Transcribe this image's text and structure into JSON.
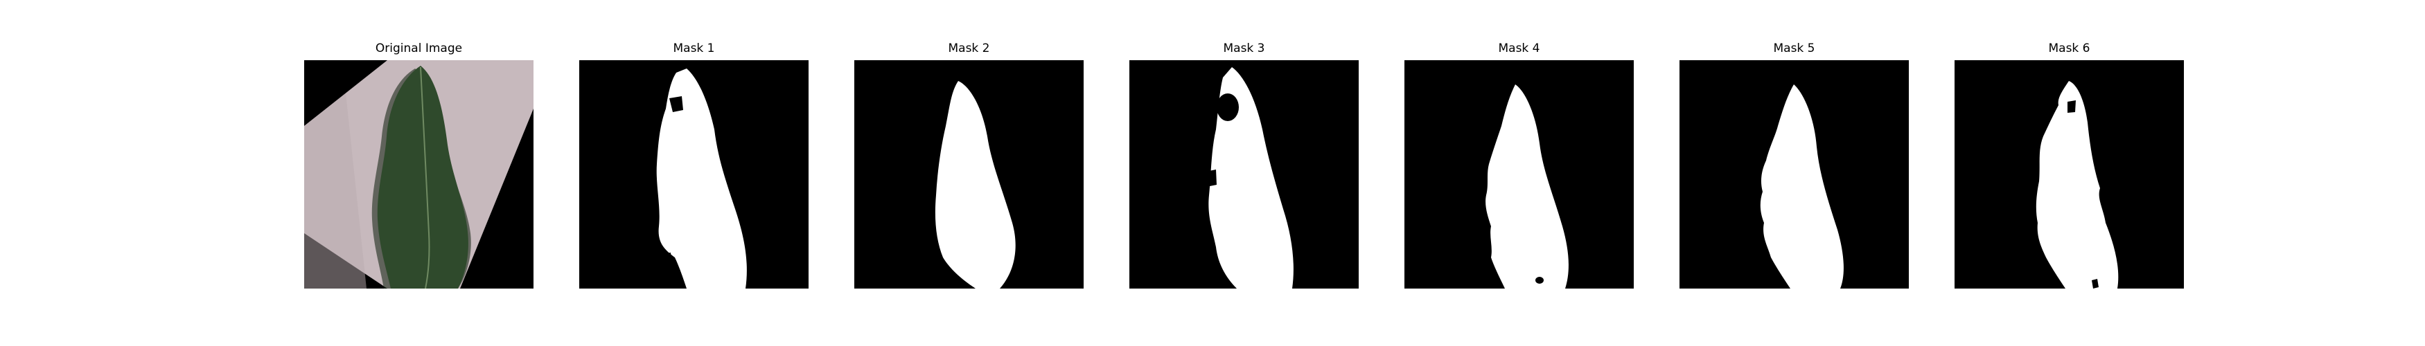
{
  "figure": {
    "panels": [
      {
        "title": "Original Image",
        "kind": "photo"
      },
      {
        "title": "Mask 1",
        "kind": "mask"
      },
      {
        "title": "Mask 2",
        "kind": "mask"
      },
      {
        "title": "Mask 3",
        "kind": "mask"
      },
      {
        "title": "Mask 4",
        "kind": "mask"
      },
      {
        "title": "Mask 5",
        "kind": "mask"
      },
      {
        "title": "Mask 6",
        "kind": "mask"
      }
    ],
    "colors": {
      "background": "#ffffff",
      "mask_background": "#000000",
      "mask_foreground": "#ffffff",
      "paper": "#c7b9bd",
      "leaf": "#2f4a2c",
      "leaf_shadow": "#1a2a19"
    }
  }
}
